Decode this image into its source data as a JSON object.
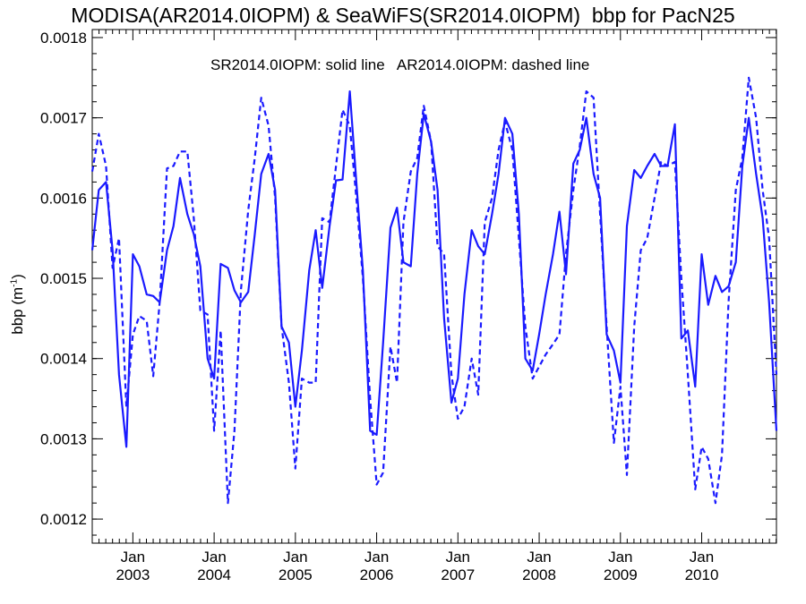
{
  "chart_data": {
    "type": "line",
    "title": "MODISA(AR2014.0IOPM) & SeaWiFS(SR2014.0IOPM)  bbp for PacN25",
    "annotation": "SR2014.0IOPM: solid line   AR2014.0IOPM: dashed line",
    "ylabel_main": "bbp (m",
    "ylabel_sup": "-1",
    "ylabel_end": ")",
    "ylim": [
      0.00117,
      0.00181
    ],
    "xlim": [
      2002.5,
      2010.92
    ],
    "yticks": [
      "0.0012",
      "0.0013",
      "0.0014",
      "0.0015",
      "0.0016",
      "0.0017",
      "0.0018"
    ],
    "ytick_values": [
      0.0012,
      0.0013,
      0.0014,
      0.0015,
      0.0016,
      0.0017,
      0.0018
    ],
    "xticks": [
      {
        "month": "Jan",
        "year": "2003",
        "value": 2003.0
      },
      {
        "month": "Jan",
        "year": "2004",
        "value": 2004.0
      },
      {
        "month": "Jan",
        "year": "2005",
        "value": 2005.0
      },
      {
        "month": "Jan",
        "year": "2006",
        "value": 2006.0
      },
      {
        "month": "Jan",
        "year": "2007",
        "value": 2007.0
      },
      {
        "month": "Jan",
        "year": "2008",
        "value": 2008.0
      },
      {
        "month": "Jan",
        "year": "2009",
        "value": 2009.0
      },
      {
        "month": "Jan",
        "year": "2010",
        "value": 2010.0
      }
    ],
    "series": [
      {
        "style": "solid",
        "color": "#1a1aff",
        "points": [
          [
            2002.5,
            0.001535
          ],
          [
            2002.58,
            0.00161
          ],
          [
            2002.67,
            0.00162
          ],
          [
            2002.75,
            0.001535
          ],
          [
            2002.83,
            0.00138
          ],
          [
            2002.92,
            0.00129
          ],
          [
            2003.0,
            0.00153
          ],
          [
            2003.08,
            0.001515
          ],
          [
            2003.17,
            0.00148
          ],
          [
            2003.25,
            0.001478
          ],
          [
            2003.33,
            0.00147
          ],
          [
            2003.42,
            0.001535
          ],
          [
            2003.5,
            0.001565
          ],
          [
            2003.58,
            0.001625
          ],
          [
            2003.67,
            0.00158
          ],
          [
            2003.75,
            0.001555
          ],
          [
            2003.83,
            0.001515
          ],
          [
            2003.92,
            0.0014
          ],
          [
            2004.0,
            0.001375
          ],
          [
            2004.08,
            0.001518
          ],
          [
            2004.17,
            0.001513
          ],
          [
            2004.25,
            0.001485
          ],
          [
            2004.33,
            0.00147
          ],
          [
            2004.42,
            0.001483
          ],
          [
            2004.5,
            0.001555
          ],
          [
            2004.58,
            0.00163
          ],
          [
            2004.67,
            0.001655
          ],
          [
            2004.75,
            0.00161
          ],
          [
            2004.83,
            0.00144
          ],
          [
            2004.92,
            0.00142
          ],
          [
            2005.0,
            0.00134
          ],
          [
            2005.08,
            0.00141
          ],
          [
            2005.17,
            0.00151
          ],
          [
            2005.25,
            0.00156
          ],
          [
            2005.33,
            0.001488
          ],
          [
            2005.42,
            0.001565
          ],
          [
            2005.5,
            0.001622
          ],
          [
            2005.58,
            0.001623
          ],
          [
            2005.67,
            0.001733
          ],
          [
            2005.75,
            0.00162
          ],
          [
            2005.83,
            0.00151
          ],
          [
            2005.92,
            0.00131
          ],
          [
            2006.0,
            0.001305
          ],
          [
            2006.08,
            0.00142
          ],
          [
            2006.17,
            0.001563
          ],
          [
            2006.25,
            0.001588
          ],
          [
            2006.33,
            0.00152
          ],
          [
            2006.42,
            0.001515
          ],
          [
            2006.5,
            0.00163
          ],
          [
            2006.58,
            0.001705
          ],
          [
            2006.67,
            0.00167
          ],
          [
            2006.75,
            0.00161
          ],
          [
            2006.83,
            0.00145
          ],
          [
            2006.92,
            0.001345
          ],
          [
            2007.0,
            0.001375
          ],
          [
            2007.08,
            0.00148
          ],
          [
            2007.17,
            0.00156
          ],
          [
            2007.25,
            0.00154
          ],
          [
            2007.33,
            0.00153
          ],
          [
            2007.42,
            0.00158
          ],
          [
            2007.5,
            0.00163
          ],
          [
            2007.58,
            0.0017
          ],
          [
            2007.67,
            0.00168
          ],
          [
            2007.75,
            0.00158
          ],
          [
            2007.83,
            0.0014
          ],
          [
            2007.92,
            0.001385
          ],
          [
            2008.0,
            0.00143
          ],
          [
            2008.08,
            0.00148
          ],
          [
            2008.17,
            0.00153
          ],
          [
            2008.25,
            0.001583
          ],
          [
            2008.33,
            0.001505
          ],
          [
            2008.42,
            0.001643
          ],
          [
            2008.5,
            0.00166
          ],
          [
            2008.58,
            0.0017
          ],
          [
            2008.67,
            0.00163
          ],
          [
            2008.75,
            0.0016
          ],
          [
            2008.83,
            0.00143
          ],
          [
            2008.92,
            0.00141
          ],
          [
            2009.0,
            0.00137
          ],
          [
            2009.08,
            0.001565
          ],
          [
            2009.17,
            0.001635
          ],
          [
            2009.25,
            0.001625
          ],
          [
            2009.33,
            0.00164
          ],
          [
            2009.42,
            0.001655
          ],
          [
            2009.5,
            0.00164
          ],
          [
            2009.58,
            0.00164
          ],
          [
            2009.67,
            0.001692
          ],
          [
            2009.75,
            0.001425
          ],
          [
            2009.83,
            0.001435
          ],
          [
            2009.92,
            0.001365
          ],
          [
            2010.0,
            0.00153
          ],
          [
            2010.08,
            0.001467
          ],
          [
            2010.17,
            0.001503
          ],
          [
            2010.25,
            0.001483
          ],
          [
            2010.33,
            0.00149
          ],
          [
            2010.42,
            0.00152
          ],
          [
            2010.5,
            0.00164
          ],
          [
            2010.58,
            0.0017
          ],
          [
            2010.67,
            0.00163
          ],
          [
            2010.75,
            0.001575
          ],
          [
            2010.83,
            0.00147
          ],
          [
            2010.92,
            0.00131
          ]
        ]
      },
      {
        "style": "dashed",
        "color": "#1a1aff",
        "points": [
          [
            2002.5,
            0.001633
          ],
          [
            2002.58,
            0.00168
          ],
          [
            2002.67,
            0.00164
          ],
          [
            2002.75,
            0.001513
          ],
          [
            2002.83,
            0.00155
          ],
          [
            2002.92,
            0.00134
          ],
          [
            2003.0,
            0.00143
          ],
          [
            2003.08,
            0.001453
          ],
          [
            2003.17,
            0.001447
          ],
          [
            2003.25,
            0.001378
          ],
          [
            2003.33,
            0.00147
          ],
          [
            2003.42,
            0.001637
          ],
          [
            2003.5,
            0.00164
          ],
          [
            2003.58,
            0.001658
          ],
          [
            2003.67,
            0.001658
          ],
          [
            2003.75,
            0.001575
          ],
          [
            2003.83,
            0.00146
          ],
          [
            2003.92,
            0.001455
          ],
          [
            2004.0,
            0.00131
          ],
          [
            2004.08,
            0.001435
          ],
          [
            2004.17,
            0.00122
          ],
          [
            2004.25,
            0.00131
          ],
          [
            2004.33,
            0.001485
          ],
          [
            2004.42,
            0.001585
          ],
          [
            2004.5,
            0.00165
          ],
          [
            2004.58,
            0.001725
          ],
          [
            2004.67,
            0.00169
          ],
          [
            2004.75,
            0.0016
          ],
          [
            2004.83,
            0.00144
          ],
          [
            2004.92,
            0.00137
          ],
          [
            2005.0,
            0.001263
          ],
          [
            2005.08,
            0.001375
          ],
          [
            2005.17,
            0.00137
          ],
          [
            2005.25,
            0.00137
          ],
          [
            2005.33,
            0.001575
          ],
          [
            2005.42,
            0.00157
          ],
          [
            2005.5,
            0.00164
          ],
          [
            2005.58,
            0.00171
          ],
          [
            2005.67,
            0.00169
          ],
          [
            2005.75,
            0.0016
          ],
          [
            2005.83,
            0.0015
          ],
          [
            2005.92,
            0.00135
          ],
          [
            2006.0,
            0.001243
          ],
          [
            2006.08,
            0.001258
          ],
          [
            2006.17,
            0.001415
          ],
          [
            2006.25,
            0.00137
          ],
          [
            2006.33,
            0.00157
          ],
          [
            2006.42,
            0.001633
          ],
          [
            2006.5,
            0.00165
          ],
          [
            2006.58,
            0.001715
          ],
          [
            2006.67,
            0.00167
          ],
          [
            2006.75,
            0.00154
          ],
          [
            2006.83,
            0.00153
          ],
          [
            2006.92,
            0.00138
          ],
          [
            2007.0,
            0.001325
          ],
          [
            2007.08,
            0.00134
          ],
          [
            2007.17,
            0.0014
          ],
          [
            2007.25,
            0.001355
          ],
          [
            2007.33,
            0.00157
          ],
          [
            2007.42,
            0.0016
          ],
          [
            2007.5,
            0.00166
          ],
          [
            2007.58,
            0.001695
          ],
          [
            2007.67,
            0.00166
          ],
          [
            2007.75,
            0.00155
          ],
          [
            2007.83,
            0.00144
          ],
          [
            2007.92,
            0.001375
          ],
          [
            2008.0,
            0.00139
          ],
          [
            2008.08,
            0.001405
          ],
          [
            2008.17,
            0.001418
          ],
          [
            2008.25,
            0.00143
          ],
          [
            2008.33,
            0.00153
          ],
          [
            2008.42,
            0.00161
          ],
          [
            2008.5,
            0.001665
          ],
          [
            2008.58,
            0.001733
          ],
          [
            2008.67,
            0.001725
          ],
          [
            2008.75,
            0.00158
          ],
          [
            2008.83,
            0.00144
          ],
          [
            2008.92,
            0.001295
          ],
          [
            2009.0,
            0.001365
          ],
          [
            2009.08,
            0.001255
          ],
          [
            2009.17,
            0.00144
          ],
          [
            2009.25,
            0.001535
          ],
          [
            2009.33,
            0.00155
          ],
          [
            2009.42,
            0.0016
          ],
          [
            2009.5,
            0.001645
          ],
          [
            2009.58,
            0.00164
          ],
          [
            2009.67,
            0.001645
          ],
          [
            2009.75,
            0.0015
          ],
          [
            2009.83,
            0.00138
          ],
          [
            2009.92,
            0.001237
          ],
          [
            2010.0,
            0.00129
          ],
          [
            2010.08,
            0.001275
          ],
          [
            2010.17,
            0.00122
          ],
          [
            2010.25,
            0.00128
          ],
          [
            2010.33,
            0.00147
          ],
          [
            2010.42,
            0.00161
          ],
          [
            2010.5,
            0.00165
          ],
          [
            2010.58,
            0.00175
          ],
          [
            2010.67,
            0.0017
          ],
          [
            2010.75,
            0.00161
          ],
          [
            2010.83,
            0.00155
          ],
          [
            2010.92,
            0.00138
          ]
        ]
      }
    ]
  }
}
